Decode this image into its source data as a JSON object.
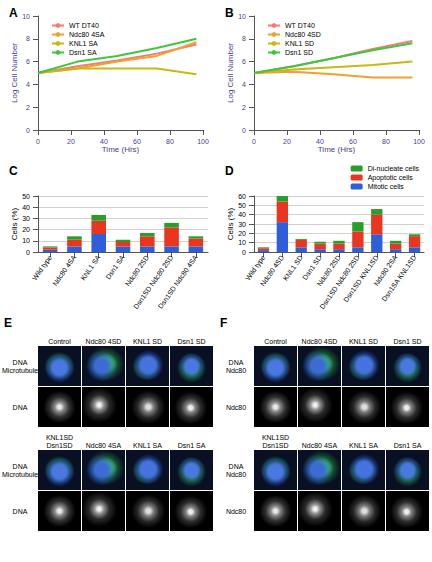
{
  "chart_data": [
    {
      "type": "line",
      "title": "A",
      "x_label": "Time (Hrs)",
      "y_label": "Log Cell Number",
      "x": [
        0,
        24,
        48,
        72,
        96
      ],
      "xlim": [
        0,
        100
      ],
      "xticks": [
        0,
        20,
        40,
        60,
        80,
        100
      ],
      "ylim": [
        0,
        10
      ],
      "yticks": [
        0,
        2,
        4,
        6,
        8,
        10
      ],
      "grid": false,
      "legend": "top-left",
      "marker": "none",
      "series": [
        {
          "name": "WT DT40",
          "color": "#f07c73",
          "values": [
            5,
            5.6,
            6.1,
            6.7,
            7.5
          ]
        },
        {
          "name": "Ndc80 4SA",
          "color": "#f0a030",
          "values": [
            5,
            5.4,
            6.0,
            6.5,
            7.7
          ]
        },
        {
          "name": "KNL1 SA",
          "color": "#c8b814",
          "values": [
            5,
            5.4,
            5.4,
            5.4,
            4.9
          ]
        },
        {
          "name": "Dsn1 SA",
          "color": "#3cc83c",
          "values": [
            5,
            6.0,
            6.5,
            7.2,
            8.0
          ]
        }
      ]
    },
    {
      "type": "line",
      "title": "B",
      "x_label": "Time (Hrs)",
      "y_label": "Log Cell Number",
      "x": [
        0,
        24,
        48,
        72,
        96
      ],
      "xlim": [
        0,
        100
      ],
      "xticks": [
        0,
        20,
        40,
        60,
        80,
        100
      ],
      "ylim": [
        0,
        10
      ],
      "yticks": [
        0,
        2,
        4,
        6,
        8,
        10
      ],
      "grid": false,
      "legend": "top-left",
      "marker": "none",
      "series": [
        {
          "name": "WT DT40",
          "color": "#f07c73",
          "values": [
            5,
            5.6,
            6.3,
            7.1,
            7.8
          ]
        },
        {
          "name": "Ndc80 4SD",
          "color": "#f0a030",
          "values": [
            5,
            5.1,
            4.9,
            4.6,
            4.6
          ]
        },
        {
          "name": "KNL1 SD",
          "color": "#c8b814",
          "values": [
            5,
            5.3,
            5.5,
            5.7,
            6.0
          ]
        },
        {
          "name": "Dsn1 SD",
          "color": "#3cc83c",
          "values": [
            5,
            5.6,
            6.3,
            7.0,
            7.6
          ]
        }
      ]
    },
    {
      "type": "bar",
      "title": "C",
      "y_label": "Cells (%)",
      "stacked": true,
      "grid": true,
      "categories": [
        "Wild type",
        "Ndc80 4SA",
        "KNL1 SA",
        "Dsn1 SA",
        "Ndc80 2SD",
        "Dsn1SD Ndc80 2SD",
        "Dsn1SD Ndc80 4SA"
      ],
      "ylim": [
        0,
        50
      ],
      "yticks": [
        0,
        10,
        20,
        30,
        40,
        50
      ],
      "series": [
        {
          "name": "Mitotic cells",
          "color": "#2e5fd8",
          "values": [
            2,
            5,
            16,
            5,
            5,
            5,
            5
          ]
        },
        {
          "name": "Apoptotic cells",
          "color": "#e8361f",
          "values": [
            2,
            6,
            12,
            4,
            9,
            17,
            7
          ]
        },
        {
          "name": "Di-nucleate cells",
          "color": "#2a9e2a",
          "values": [
            1,
            3,
            5,
            2,
            3,
            4,
            2
          ]
        }
      ]
    },
    {
      "type": "bar",
      "title": "D",
      "y_label": "Cells (%)",
      "stacked": true,
      "grid": true,
      "legend": "top-right",
      "categories": [
        "Wild type",
        "Ndc80 4SD",
        "KNL1 SD",
        "Dsn1 SD",
        "Ndc80 2SD",
        "Dsn1SD Ndc80 2SD",
        "Dsn1SD KNL1SD",
        "Ndc80 2SA",
        "Dsn1SA KNL1SD"
      ],
      "ylim": [
        0,
        60
      ],
      "yticks": [
        0,
        10,
        20,
        30,
        40,
        50,
        60
      ],
      "series": [
        {
          "name": "Mitotic cells",
          "color": "#2e5fd8",
          "values": [
            2,
            32,
            5,
            3,
            3,
            5,
            19,
            3,
            5
          ]
        },
        {
          "name": "Apoptotic cells",
          "color": "#e8361f",
          "values": [
            2,
            22,
            8,
            6,
            6,
            17,
            21,
            6,
            12
          ]
        },
        {
          "name": "Di-nucleate cells",
          "color": "#2a9e2a",
          "values": [
            1,
            6,
            1,
            2,
            3,
            10,
            6,
            3,
            2
          ]
        }
      ]
    }
  ],
  "figure_panels": [
    {
      "title": "E",
      "blocks": [
        {
          "columns": [
            "Control",
            "Ndc80 4SD",
            "KNL1 SD",
            "Dsn1 SD"
          ],
          "rows": [
            "DNA Microtubules",
            "DNA"
          ]
        },
        {
          "columns": [
            "KNL1SD Dsn1SD",
            "Ndc80 4SA",
            "KNL1 SA",
            "Dsn1 SA"
          ],
          "rows": [
            "DNA Microtubules",
            "DNA"
          ]
        }
      ]
    },
    {
      "title": "F",
      "blocks": [
        {
          "columns": [
            "Control",
            "Ndc80 4SD",
            "KNL1 SD",
            "Dsn1 SD"
          ],
          "rows": [
            "DNA Ndc80",
            "Ndc80"
          ]
        },
        {
          "columns": [
            "KNL1SD Dsn1SD",
            "Ndc80 4SA",
            "KNL1 SA",
            "Dsn1 SA"
          ],
          "rows": [
            "DNA Ndc80",
            "Ndc80"
          ]
        }
      ]
    }
  ]
}
